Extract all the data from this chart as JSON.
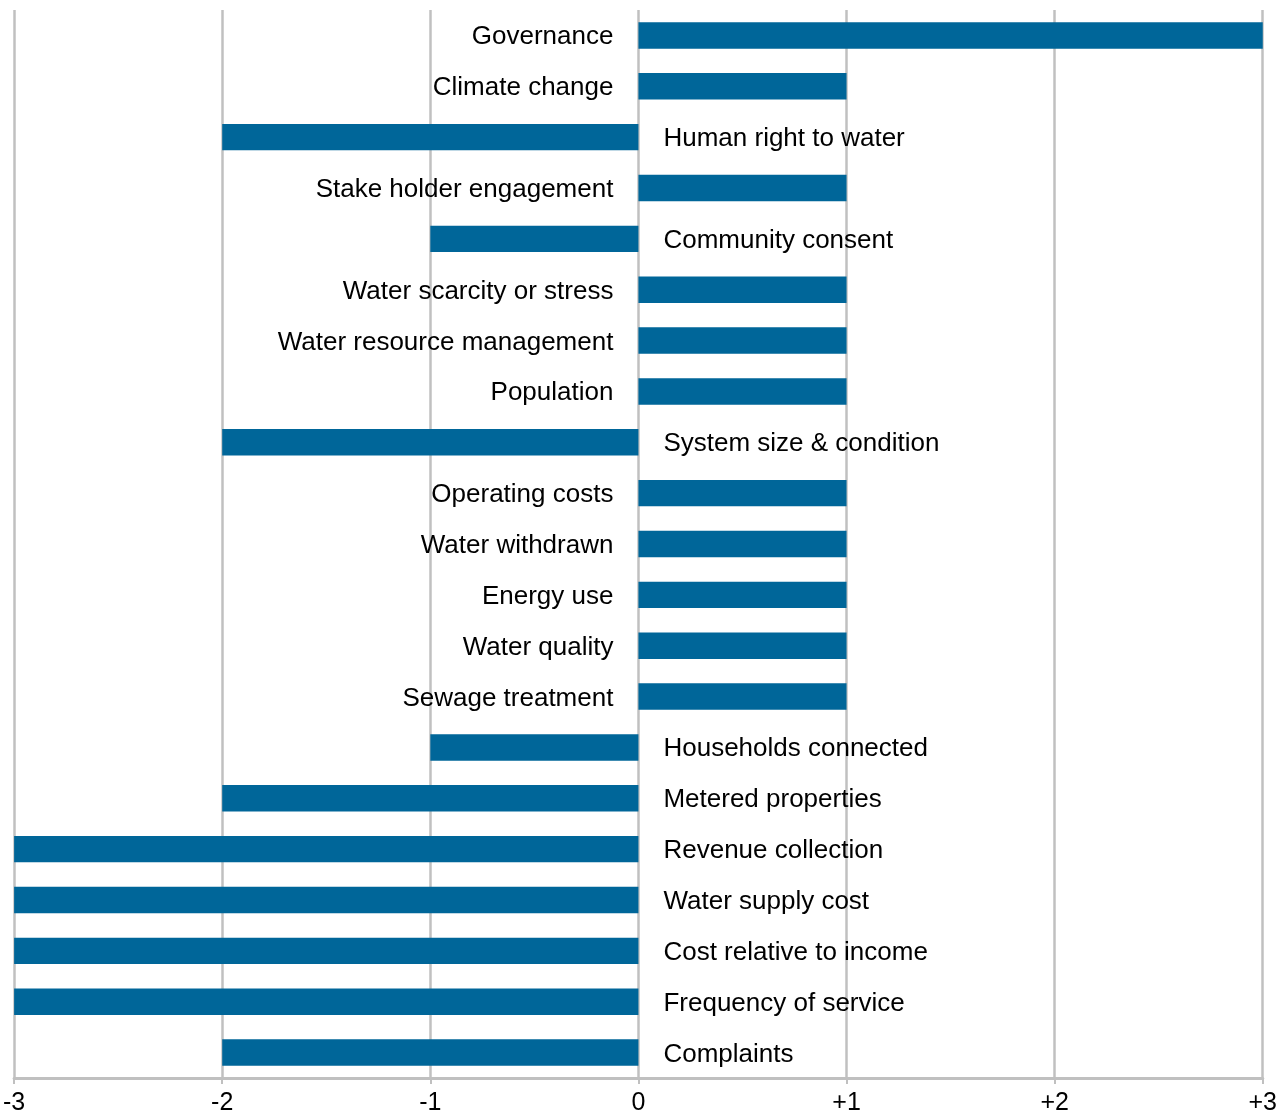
{
  "chart_data": {
    "type": "bar",
    "orientation": "horizontal",
    "categories": [
      "Governance",
      "Climate change",
      "Human right to water",
      "Stake holder engagement",
      "Community consent",
      "Water scarcity or stress",
      "Water resource management",
      "Population",
      "System size & condition",
      "Operating costs",
      "Water withdrawn",
      "Energy use",
      "Water quality",
      "Sewage treatment",
      "Households connected",
      "Metered properties",
      "Revenue collection",
      "Water supply cost",
      "Cost relative to income",
      "Frequency of service",
      "Complaints"
    ],
    "values": [
      3,
      1,
      -2,
      1,
      -1,
      1,
      1,
      1,
      -2,
      1,
      1,
      1,
      1,
      1,
      -1,
      -2,
      -3,
      -3,
      -3,
      -3,
      -2
    ],
    "color": "#006699",
    "xlim": [
      -3,
      3
    ],
    "xticks": [
      -3,
      -2,
      -1,
      0,
      {
        "value": 1,
        "label": "+1"
      },
      {
        "value": 2,
        "label": "+2"
      },
      {
        "value": 3,
        "label": "+3"
      }
    ],
    "grid": "x"
  }
}
